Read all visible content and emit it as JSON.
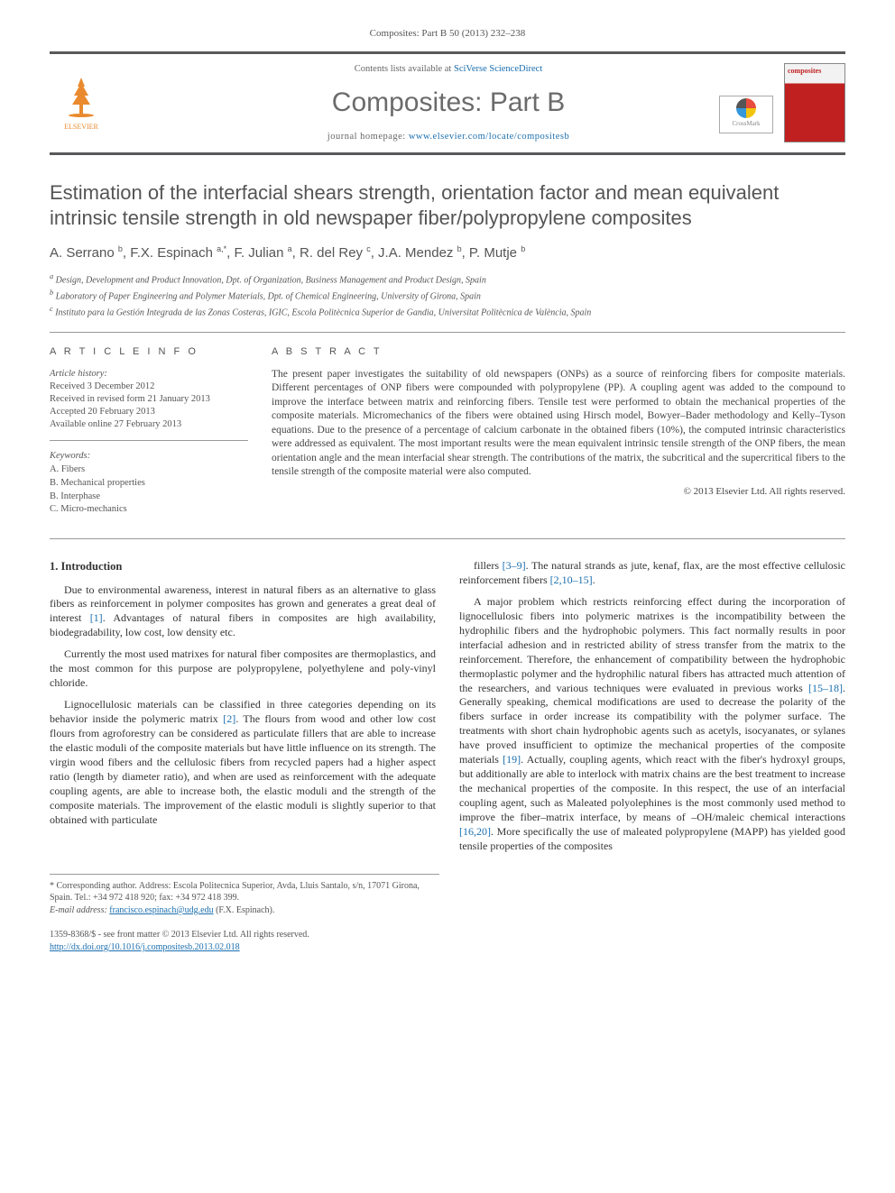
{
  "header": {
    "citation": "Composites: Part B 50 (2013) 232–238",
    "contents_prefix": "Contents lists available at ",
    "contents_link": "SciVerse ScienceDirect",
    "journal_name": "Composites: Part B",
    "homepage_prefix": "journal homepage: ",
    "homepage_url": "www.elsevier.com/locate/compositesb",
    "publisher_logo_text": "ELSEVIER",
    "cover_label": "composites",
    "crossmark_label": "CrossMark"
  },
  "article": {
    "title": "Estimation of the interfacial shears strength, orientation factor and mean equivalent intrinsic tensile strength in old newspaper fiber/polypropylene composites",
    "authors_html": "A. Serrano <sup>b</sup>, F.X. Espinach <sup>a,*</sup>, F. Julian <sup>a</sup>, R. del Rey <sup>c</sup>, J.A. Mendez <sup>b</sup>, P. Mutje <sup>b</sup>",
    "affiliations": [
      "a Design, Development and Product Innovation, Dpt. of Organization, Business Management and Product Design, Spain",
      "b Laboratory of Paper Engineering and Polymer Materials, Dpt. of Chemical Engineering, University of Girona, Spain",
      "c Instituto para la Gestión Integrada de las Zonas Costeras, IGIC, Escola Politècnica Superior de Gandia, Universitat Politècnica de València, Spain"
    ]
  },
  "info": {
    "heading": "A R T I C L E   I N F O",
    "history_label": "Article history:",
    "history": [
      "Received 3 December 2012",
      "Received in revised form 21 January 2013",
      "Accepted 20 February 2013",
      "Available online 27 February 2013"
    ],
    "keywords_label": "Keywords:",
    "keywords": [
      "A. Fibers",
      "B. Mechanical properties",
      "B. Interphase",
      "C. Micro-mechanics"
    ]
  },
  "abstract": {
    "heading": "A B S T R A C T",
    "text": "The present paper investigates the suitability of old newspapers (ONPs) as a source of reinforcing fibers for composite materials. Different percentages of ONP fibers were compounded with polypropylene (PP). A coupling agent was added to the compound to improve the interface between matrix and reinforcing fibers. Tensile test were performed to obtain the mechanical properties of the composite materials. Micromechanics of the fibers were obtained using Hirsch model, Bowyer–Bader methodology and Kelly–Tyson equations. Due to the presence of a percentage of calcium carbonate in the obtained fibers (10%), the computed intrinsic characteristics were addressed as equivalent. The most important results were the mean equivalent intrinsic tensile strength of the ONP fibers, the mean orientation angle and the mean interfacial shear strength. The contributions of the matrix, the subcritical and the supercritical fibers to the tensile strength of the composite material were also computed.",
    "copyright": "© 2013 Elsevier Ltd. All rights reserved."
  },
  "body": {
    "section_heading": "1. Introduction",
    "col1": [
      "Due to environmental awareness, interest in natural fibers as an alternative to glass fibers as reinforcement in polymer composites has grown and generates a great deal of interest [1]. Advantages of natural fibers in composites are high availability, biodegradability, low cost, low density etc.",
      "Currently the most used matrixes for natural fiber composites are thermoplastics, and the most common for this purpose are polypropylene, polyethylene and poly-vinyl chloride.",
      "Lignocellulosic materials can be classified in three categories depending on its behavior inside the polymeric matrix [2]. The flours from wood and other low cost flours from agroforestry can be considered as particulate fillers that are able to increase the elastic moduli of the composite materials but have little influence on its strength. The virgin wood fibers and the cellulosic fibers from recycled papers had a higher aspect ratio (length by diameter ratio), and when are used as reinforcement with the adequate coupling agents, are able to increase both, the elastic moduli and the strength of the composite materials. The improvement of the elastic moduli is slightly superior to that obtained with particulate"
    ],
    "col2": [
      "fillers [3–9]. The natural strands as jute, kenaf, flax, are the most effective cellulosic reinforcement fibers [2,10–15].",
      "A major problem which restricts reinforcing effect during the incorporation of lignocellulosic fibers into polymeric matrixes is the incompatibility between the hydrophilic fibers and the hydrophobic polymers. This fact normally results in poor interfacial adhesion and in restricted ability of stress transfer from the matrix to the reinforcement. Therefore, the enhancement of compatibility between the hydrophobic thermoplastic polymer and the hydrophilic natural fibers has attracted much attention of the researchers, and various techniques were evaluated in previous works [15–18]. Generally speaking, chemical modifications are used to decrease the polarity of the fibers surface in order increase its compatibility with the polymer surface. The treatments with short chain hydrophobic agents such as acetyls, isocyanates, or sylanes have proved insufficient to optimize the mechanical properties of the composite materials [19]. Actually, coupling agents, which react with the fiber's hydroxyl groups, but additionally are able to interlock with matrix chains are the best treatment to increase the mechanical properties of the composite. In this respect, the use of an interfacial coupling agent, such as Maleated polyolephines is the most commonly used method to improve the fiber–matrix interface, by means of –OH/maleic chemical interactions [16,20]. More specifically the use of maleated polypropylene (MAPP) has yielded good tensile properties of the composites"
    ]
  },
  "footnotes": {
    "corresponding": "* Corresponding author. Address: Escola Politecnica Superior, Avda, Lluis Santalo, s/n, 17071 Girona, Spain. Tel.: +34 972 418 920; fax: +34 972 418 399.",
    "email_label": "E-mail address:",
    "email": "francisco.espinach@udg.edu",
    "email_suffix": "(F.X. Espinach)."
  },
  "footer": {
    "line1": "1359-8368/$ - see front matter © 2013 Elsevier Ltd. All rights reserved.",
    "doi": "http://dx.doi.org/10.1016/j.compositesb.2013.02.018"
  },
  "colors": {
    "link": "#1b6faf",
    "rule": "#58595b",
    "text_muted": "#555555"
  }
}
